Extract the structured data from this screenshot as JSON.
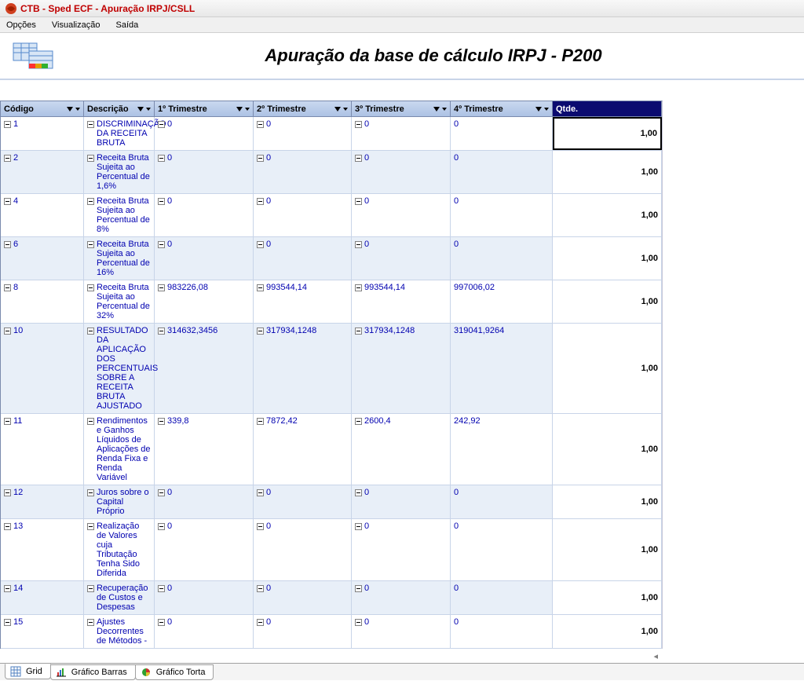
{
  "window": {
    "title": "CTB - Sped ECF - Apuração IRPJ/CSLL"
  },
  "menu": {
    "items": [
      "Opções",
      "Visualização",
      "Saída"
    ]
  },
  "page": {
    "title": "Apuração da base de cálculo IRPJ - P200"
  },
  "columns": {
    "codigo": "Código",
    "descricao": "Descrição",
    "t1": "1º Trimestre",
    "t2": "2º Trimestre",
    "t3": "3º Trimestre",
    "t4": "4º Trimestre",
    "qtde": "Qtde."
  },
  "rows": [
    {
      "codigo": "1",
      "descricao": "DISCRIMINAÇÃO DA RECEITA BRUTA",
      "t1": "0",
      "t2": "0",
      "t3": "0",
      "t4": "0",
      "qtde": "1,00",
      "highlight": true
    },
    {
      "codigo": "2",
      "descricao": "Receita Bruta Sujeita ao Percentual de 1,6%",
      "t1": "0",
      "t2": "0",
      "t3": "0",
      "t4": "0",
      "qtde": "1,00"
    },
    {
      "codigo": "4",
      "descricao": "Receita Bruta Sujeita ao Percentual de 8%",
      "t1": "0",
      "t2": "0",
      "t3": "0",
      "t4": "0",
      "qtde": "1,00"
    },
    {
      "codigo": "6",
      "descricao": "Receita Bruta Sujeita ao Percentual de 16%",
      "t1": "0",
      "t2": "0",
      "t3": "0",
      "t4": "0",
      "qtde": "1,00"
    },
    {
      "codigo": "8",
      "descricao": "Receita Bruta Sujeita ao Percentual de 32%",
      "t1": "983226,08",
      "t2": "993544,14",
      "t3": "993544,14",
      "t4": "997006,02",
      "qtde": "1,00"
    },
    {
      "codigo": "10",
      "descricao": "RESULTADO DA APLICAÇÃO DOS PERCENTUAIS SOBRE A RECEITA BRUTA AJUSTADO",
      "t1": "314632,3456",
      "t2": "317934,1248",
      "t3": "317934,1248",
      "t4": "319041,9264",
      "qtde": "1,00"
    },
    {
      "codigo": "11",
      "descricao": "Rendimentos e Ganhos Líquidos de Aplicações de Renda Fixa e Renda Variável",
      "t1": "339,8",
      "t2": "7872,42",
      "t3": "2600,4",
      "t4": "242,92",
      "qtde": "1,00"
    },
    {
      "codigo": "12",
      "descricao": "Juros sobre o Capital Próprio",
      "t1": "0",
      "t2": "0",
      "t3": "0",
      "t4": "0",
      "qtde": "1,00"
    },
    {
      "codigo": "13",
      "descricao": "Realização de Valores cuja Tributação Tenha Sido Diferida",
      "t1": "0",
      "t2": "0",
      "t3": "0",
      "t4": "0",
      "qtde": "1,00"
    },
    {
      "codigo": "14",
      "descricao": "Recuperação de Custos e Despesas",
      "t1": "0",
      "t2": "0",
      "t3": "0",
      "t4": "0",
      "qtde": "1,00"
    },
    {
      "codigo": "15",
      "descricao": "Ajustes Decorrentes de Métodos -",
      "t1": "0",
      "t2": "0",
      "t3": "0",
      "t4": "0",
      "qtde": "1,00"
    }
  ],
  "tabs": {
    "grid": "Grid",
    "barras": "Gráfico Barras",
    "torta": "Gráfico Torta"
  },
  "colors": {
    "title_red": "#c00000",
    "header_bg_top": "#c9d8ef",
    "header_bg_bot": "#adc2e4",
    "qtde_header_bg": "#0b0b70",
    "row_alt": "#e8eff8",
    "link_blue": "#0000b0",
    "grid_border": "#7a8aad"
  }
}
